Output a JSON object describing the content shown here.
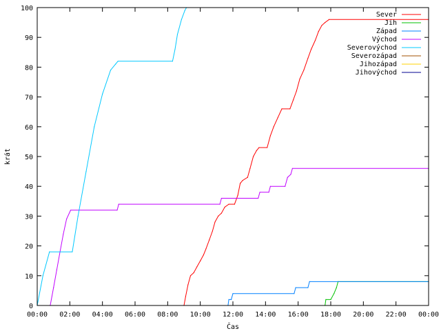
{
  "chart_data": {
    "type": "line",
    "title": "",
    "xlabel": "Čas",
    "ylabel": "krát",
    "xlim": [
      0,
      24
    ],
    "ylim": [
      0,
      100
    ],
    "grid": false,
    "legend_position": "top-right",
    "x_ticks": [
      {
        "value": 0,
        "label": "00:00"
      },
      {
        "value": 2,
        "label": "02:00"
      },
      {
        "value": 4,
        "label": "04:00"
      },
      {
        "value": 6,
        "label": "06:00"
      },
      {
        "value": 8,
        "label": "08:00"
      },
      {
        "value": 10,
        "label": "10:00"
      },
      {
        "value": 12,
        "label": "12:00"
      },
      {
        "value": 14,
        "label": "14:00"
      },
      {
        "value": 16,
        "label": "16:00"
      },
      {
        "value": 18,
        "label": "18:00"
      },
      {
        "value": 20,
        "label": "20:00"
      },
      {
        "value": 22,
        "label": "22:00"
      },
      {
        "value": 24,
        "label": "00:00"
      }
    ],
    "y_ticks": [
      {
        "value": 0,
        "label": "0"
      },
      {
        "value": 10,
        "label": "10"
      },
      {
        "value": 20,
        "label": "20"
      },
      {
        "value": 30,
        "label": "30"
      },
      {
        "value": 40,
        "label": "40"
      },
      {
        "value": 50,
        "label": "50"
      },
      {
        "value": 60,
        "label": "60"
      },
      {
        "value": 70,
        "label": "70"
      },
      {
        "value": 80,
        "label": "80"
      },
      {
        "value": 90,
        "label": "90"
      },
      {
        "value": 100,
        "label": "100"
      }
    ],
    "series": [
      {
        "name": "Sever",
        "color": "#ff0000",
        "points": [
          [
            9.0,
            0
          ],
          [
            9.1,
            3
          ],
          [
            9.25,
            7
          ],
          [
            9.4,
            10
          ],
          [
            9.6,
            11
          ],
          [
            9.8,
            13
          ],
          [
            10.0,
            15
          ],
          [
            10.2,
            17
          ],
          [
            10.35,
            19
          ],
          [
            10.55,
            22
          ],
          [
            10.75,
            25
          ],
          [
            10.9,
            28
          ],
          [
            11.1,
            30
          ],
          [
            11.3,
            31
          ],
          [
            11.5,
            33
          ],
          [
            11.75,
            34
          ],
          [
            12.1,
            34
          ],
          [
            12.3,
            37
          ],
          [
            12.45,
            41
          ],
          [
            12.6,
            42
          ],
          [
            12.9,
            43
          ],
          [
            13.05,
            46
          ],
          [
            13.25,
            50
          ],
          [
            13.45,
            52
          ],
          [
            13.6,
            53
          ],
          [
            14.1,
            53
          ],
          [
            14.3,
            57
          ],
          [
            14.5,
            60
          ],
          [
            14.75,
            63
          ],
          [
            15.0,
            66
          ],
          [
            15.5,
            66
          ],
          [
            15.7,
            69
          ],
          [
            15.9,
            72
          ],
          [
            16.1,
            76
          ],
          [
            16.35,
            79
          ],
          [
            16.6,
            83
          ],
          [
            16.8,
            86
          ],
          [
            17.05,
            89
          ],
          [
            17.25,
            92
          ],
          [
            17.45,
            94
          ],
          [
            17.65,
            95
          ],
          [
            17.9,
            96
          ],
          [
            24,
            96
          ]
        ]
      },
      {
        "name": "Jih",
        "color": "#00c000",
        "points": [
          [
            17.65,
            0
          ],
          [
            17.7,
            2
          ],
          [
            18.0,
            2
          ],
          [
            18.2,
            4
          ],
          [
            18.35,
            6
          ],
          [
            18.45,
            8
          ],
          [
            24,
            8
          ]
        ]
      },
      {
        "name": "Západ",
        "color": "#0080ff",
        "points": [
          [
            11.7,
            0
          ],
          [
            11.75,
            2
          ],
          [
            11.9,
            2
          ],
          [
            12.0,
            4
          ],
          [
            15.75,
            4
          ],
          [
            15.85,
            6
          ],
          [
            16.6,
            6
          ],
          [
            16.7,
            8
          ],
          [
            24,
            8
          ]
        ]
      },
      {
        "name": "Východ",
        "color": "#c000ff",
        "points": [
          [
            0.8,
            0
          ],
          [
            1.0,
            6
          ],
          [
            1.2,
            12
          ],
          [
            1.4,
            18
          ],
          [
            1.6,
            24
          ],
          [
            1.8,
            29
          ],
          [
            2.05,
            32
          ],
          [
            4.9,
            32
          ],
          [
            5.0,
            34
          ],
          [
            11.2,
            34
          ],
          [
            11.3,
            36
          ],
          [
            13.55,
            36
          ],
          [
            13.65,
            38
          ],
          [
            14.2,
            38
          ],
          [
            14.3,
            40
          ],
          [
            15.2,
            40
          ],
          [
            15.35,
            43
          ],
          [
            15.55,
            44
          ],
          [
            15.65,
            46
          ],
          [
            24,
            46
          ]
        ]
      },
      {
        "name": "Severovýchod",
        "color": "#00c8ff",
        "points": [
          [
            0,
            0
          ],
          [
            0.35,
            10
          ],
          [
            0.75,
            18
          ],
          [
            2.15,
            18
          ],
          [
            2.5,
            30
          ],
          [
            3.0,
            45
          ],
          [
            3.5,
            60
          ],
          [
            4.0,
            71
          ],
          [
            4.5,
            79
          ],
          [
            4.8,
            81
          ],
          [
            4.95,
            82
          ],
          [
            8.3,
            82
          ],
          [
            8.45,
            86
          ],
          [
            8.6,
            91
          ],
          [
            8.85,
            96
          ],
          [
            9.05,
            99
          ],
          [
            9.15,
            100
          ]
        ]
      },
      {
        "name": "Severozápad",
        "color": "#a05000",
        "points": []
      },
      {
        "name": "Jihozápad",
        "color": "#ffd000",
        "points": []
      },
      {
        "name": "Jihovýchod",
        "color": "#000090",
        "points": []
      }
    ]
  }
}
